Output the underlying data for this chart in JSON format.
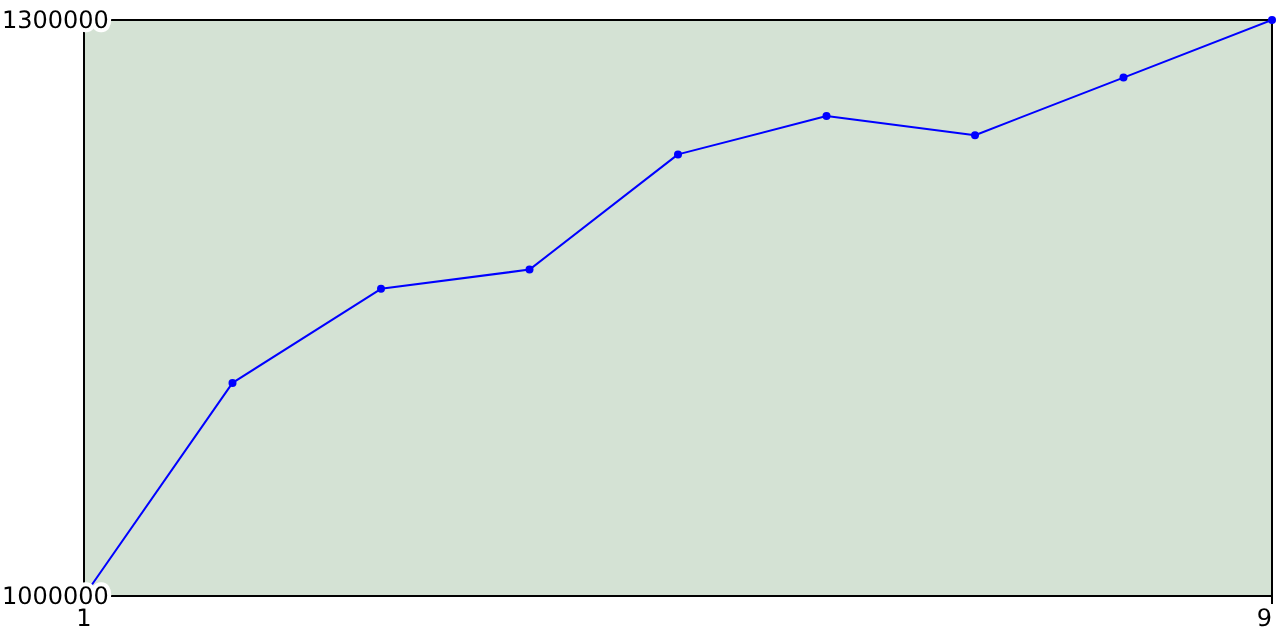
{
  "chart_data": {
    "type": "line",
    "x": [
      1,
      2,
      3,
      4,
      5,
      6,
      7,
      8,
      9
    ],
    "series": [
      {
        "color": "#0000ff",
        "values": [
          1000000,
          1111000,
          1160000,
          1170000,
          1230000,
          1250000,
          1240000,
          1270000,
          1300000
        ]
      }
    ],
    "xlim": [
      1,
      9
    ],
    "xticks": [
      1,
      9
    ],
    "ylim": [
      1000000,
      1300000
    ],
    "yticks": [
      1000000,
      1300000
    ],
    "marker": "circle"
  }
}
